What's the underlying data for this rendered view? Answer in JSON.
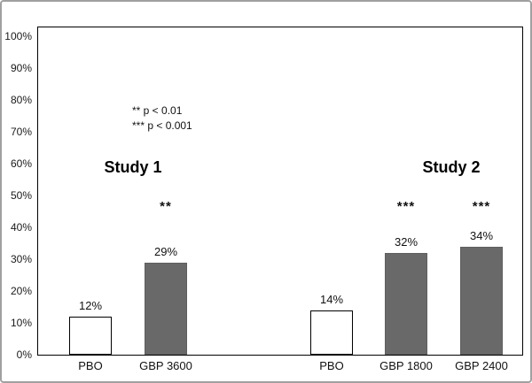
{
  "chart_data": {
    "type": "bar",
    "categories": [
      "PBO",
      "GBP 3600",
      "PBO",
      "GBP 1800",
      "GBP 2400"
    ],
    "values": [
      12,
      29,
      14,
      32,
      34
    ],
    "value_labels": [
      "12%",
      "29%",
      "14%",
      "32%",
      "34%"
    ],
    "significance": [
      "",
      "**",
      "",
      "***",
      "***"
    ],
    "bar_fills": [
      "#ffffff",
      "#696969",
      "#ffffff",
      "#696969",
      "#696969"
    ],
    "studies": [
      "Study  1",
      "Study 2"
    ],
    "legend": [
      "** p < 0.01",
      "*** p < 0.001"
    ],
    "legend_position": "top-left-inside",
    "y_ticks": [
      "100%",
      "90%",
      "80%",
      "70%",
      "60%",
      "50%",
      "40%",
      "30%",
      "20%",
      "10%",
      "0%"
    ],
    "y_tick_values": [
      100,
      90,
      80,
      70,
      60,
      50,
      40,
      30,
      20,
      10,
      0
    ],
    "ylim": [
      0,
      100
    ],
    "grid": "off",
    "title": "",
    "xlabel": "",
    "ylabel": ""
  }
}
